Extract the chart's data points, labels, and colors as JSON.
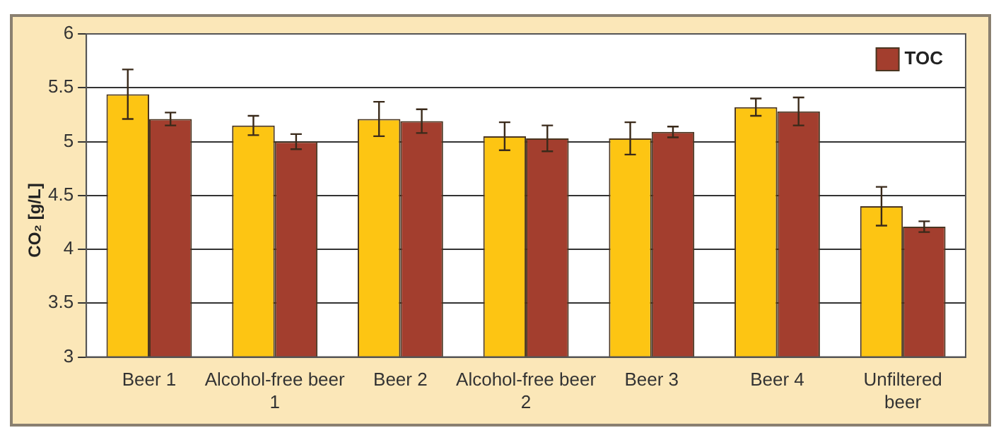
{
  "chart_data": {
    "type": "bar",
    "ylabel": "CO₂ [g/L]",
    "categories": [
      "Beer 1",
      "Alcohol-free beer 1",
      "Beer 2",
      "Alcohol-free beer 2",
      "Beer 3",
      "Beer 4",
      "Unfiltered beer"
    ],
    "series": [
      {
        "color": "#fdc513",
        "values": [
          5.44,
          5.15,
          5.21,
          5.05,
          5.03,
          5.32,
          4.4
        ],
        "errors": [
          0.23,
          0.09,
          0.16,
          0.13,
          0.15,
          0.08,
          0.18
        ]
      },
      {
        "name": "TOC",
        "color": "#a33e2e",
        "values": [
          5.21,
          5.0,
          5.19,
          5.03,
          5.09,
          5.28,
          4.21
        ],
        "errors": [
          0.06,
          0.07,
          0.11,
          0.12,
          0.05,
          0.13,
          0.05
        ]
      }
    ],
    "ylim": [
      3,
      6
    ],
    "yticks": [
      3,
      3.5,
      4,
      4.5,
      5,
      5.5,
      6
    ],
    "grid": "y",
    "legend": "top right"
  }
}
